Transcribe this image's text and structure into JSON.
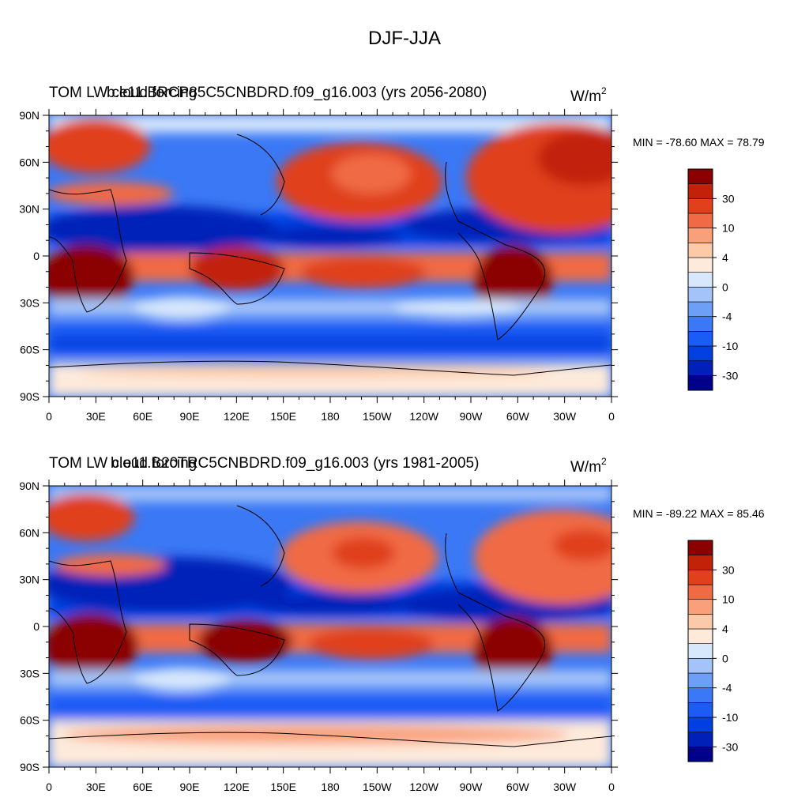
{
  "title": "DJF-JJA",
  "legend_colors": [
    "#00008b",
    "#0020b8",
    "#0040e0",
    "#1a5cf5",
    "#3a78f5",
    "#6e9ff6",
    "#a4c3f8",
    "#d7e7fc",
    "#fdeadb",
    "#fccaa8",
    "#f9a07a",
    "#f06b45",
    "#e0401c",
    "#c22208",
    "#8b0000"
  ],
  "colorbar_labels": [
    "30",
    "10",
    "4",
    "0",
    "-4",
    "-10",
    "-30"
  ],
  "x_ticks": [
    "0",
    "30E",
    "60E",
    "90E",
    "120E",
    "150E",
    "180",
    "150W",
    "120W",
    "90W",
    "60W",
    "30W",
    "0"
  ],
  "y_ticks": [
    "90N",
    "60N",
    "30N",
    "0",
    "30S",
    "60S",
    "90S"
  ],
  "panels": [
    {
      "title_left_a": "TOM LW cloud forcing",
      "title_left_b": "b.e11.BRCP85C5CNBDRD.f09_g16.003 (yrs 2056-2080)",
      "units": "W/m",
      "units_sup": "2",
      "min_max": "MIN = -78.60 MAX =  78.79"
    },
    {
      "title_left_a": "TOM LW cloud forcing",
      "title_left_b": "b.e11.B20TRC5CNBDRD.f09_g16.003 (yrs 1981-2005)",
      "units": "W/m",
      "units_sup": "2",
      "min_max": "MIN = -89.22 MAX =  85.46"
    }
  ]
}
